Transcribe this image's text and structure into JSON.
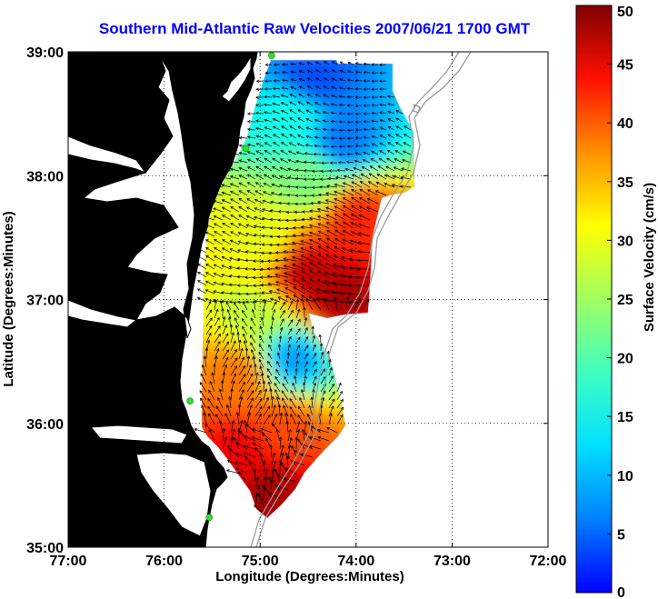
{
  "title": "Southern Mid-Atlantic Raw Velocities 2007/06/21 1700 GMT",
  "map": {
    "xlabel": "Longitude (Degrees:Minutes)",
    "ylabel": "Latitude (Degrees:Minutes)",
    "xlim": [
      -77,
      -72
    ],
    "ylim": [
      35,
      39
    ],
    "x_ticks": [
      {
        "value": -77,
        "label": "77:00"
      },
      {
        "value": -76,
        "label": "76:00"
      },
      {
        "value": -75,
        "label": "75:00"
      },
      {
        "value": -74,
        "label": "74:00"
      },
      {
        "value": -73,
        "label": "73:00"
      },
      {
        "value": -72,
        "label": "72:00"
      }
    ],
    "y_ticks": [
      {
        "value": 39,
        "label": "39:00"
      },
      {
        "value": 38,
        "label": "38:00"
      },
      {
        "value": 37,
        "label": "37:00"
      },
      {
        "value": 36,
        "label": "36:00"
      },
      {
        "value": 35,
        "label": "35:00"
      }
    ],
    "grid": "dotted",
    "land_color": "#5ff5a6",
    "coast_color": "#000000",
    "station_color": "#33dd33",
    "stations": [
      {
        "lon": -74.88,
        "lat": 38.97
      },
      {
        "lon": -75.15,
        "lat": 38.22
      },
      {
        "lon": -75.73,
        "lat": 36.18
      },
      {
        "lon": -75.53,
        "lat": 35.24
      }
    ]
  },
  "colorbar": {
    "label": "Surface Velocity (cm/s)",
    "min": 0,
    "max": 50,
    "ticks": [
      {
        "value": 0,
        "label": "0"
      },
      {
        "value": 5,
        "label": "5"
      },
      {
        "value": 10,
        "label": "10"
      },
      {
        "value": 15,
        "label": "15"
      },
      {
        "value": 20,
        "label": "20"
      },
      {
        "value": 25,
        "label": "25"
      },
      {
        "value": 30,
        "label": "30"
      },
      {
        "value": 35,
        "label": "35"
      },
      {
        "value": 40,
        "label": "40"
      },
      {
        "value": 45,
        "label": "45"
      },
      {
        "value": 50,
        "label": "50"
      }
    ],
    "colormap": "jet"
  },
  "chart_data": {
    "type": "heatmap",
    "title": "Southern Mid-Atlantic Raw Velocities 2007/06/21 1700 GMT",
    "xlabel": "Longitude (Degrees:Minutes)",
    "ylabel": "Latitude (Degrees:Minutes)",
    "value_label": "Surface Velocity (cm/s)",
    "xlim": [
      -77,
      -72
    ],
    "ylim": [
      35,
      39
    ],
    "clim": [
      0,
      50
    ],
    "speed_regions": [
      {
        "lon": -74.5,
        "lat": 38.8,
        "speed": 10
      },
      {
        "lon": -74.2,
        "lat": 38.3,
        "speed": 12
      },
      {
        "lon": -74.7,
        "lat": 38.5,
        "speed": 20
      },
      {
        "lon": -74.5,
        "lat": 38.0,
        "speed": 25
      },
      {
        "lon": -74.05,
        "lat": 37.7,
        "speed": 42
      },
      {
        "lon": -74.6,
        "lat": 37.25,
        "speed": 46
      },
      {
        "lon": -74.25,
        "lat": 37.05,
        "speed": 48
      },
      {
        "lon": -75.0,
        "lat": 37.5,
        "speed": 30
      },
      {
        "lon": -75.05,
        "lat": 36.9,
        "speed": 28
      },
      {
        "lon": -74.7,
        "lat": 36.55,
        "speed": 14
      },
      {
        "lon": -75.25,
        "lat": 36.4,
        "speed": 38
      },
      {
        "lon": -74.8,
        "lat": 36.0,
        "speed": 40
      },
      {
        "lon": -75.2,
        "lat": 35.8,
        "speed": 44
      },
      {
        "lon": -74.95,
        "lat": 35.45,
        "speed": 48
      }
    ]
  }
}
